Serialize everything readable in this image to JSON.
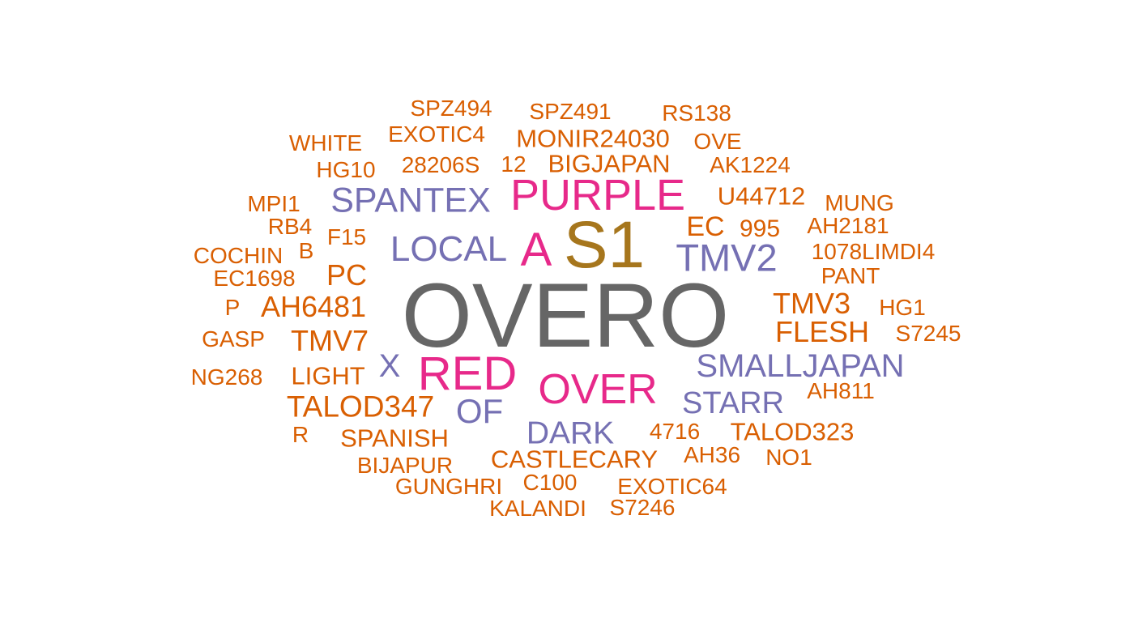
{
  "colors": {
    "orange": "#D95F02",
    "purple": "#7570B3",
    "pink": "#E7298A",
    "gold": "#A6761D",
    "gray": "#666666"
  },
  "words": [
    {
      "text": "OVERO",
      "color": "gray"
    },
    {
      "text": "S1",
      "color": "gold"
    },
    {
      "text": "PURPLE",
      "color": "pink"
    },
    {
      "text": "RED",
      "color": "pink"
    },
    {
      "text": "OVER",
      "color": "pink"
    },
    {
      "text": "A",
      "color": "pink"
    },
    {
      "text": "SPANTEX",
      "color": "purple"
    },
    {
      "text": "LOCAL",
      "color": "purple"
    },
    {
      "text": "TMV2",
      "color": "purple"
    },
    {
      "text": "SMALLJAPAN",
      "color": "purple"
    },
    {
      "text": "STARR",
      "color": "purple"
    },
    {
      "text": "DARK",
      "color": "purple"
    },
    {
      "text": "OF",
      "color": "purple"
    },
    {
      "text": "X",
      "color": "purple"
    },
    {
      "text": "SPZ494",
      "color": "orange"
    },
    {
      "text": "SPZ491",
      "color": "orange"
    },
    {
      "text": "RS138",
      "color": "orange"
    },
    {
      "text": "EXOTIC4",
      "color": "orange"
    },
    {
      "text": "MONIR24030",
      "color": "orange"
    },
    {
      "text": "OVE",
      "color": "orange"
    },
    {
      "text": "WHITE",
      "color": "orange"
    },
    {
      "text": "HG10",
      "color": "orange"
    },
    {
      "text": "28206S",
      "color": "orange"
    },
    {
      "text": "12",
      "color": "orange"
    },
    {
      "text": "BIGJAPAN",
      "color": "orange"
    },
    {
      "text": "AK1224",
      "color": "orange"
    },
    {
      "text": "U44712",
      "color": "orange"
    },
    {
      "text": "MPI1",
      "color": "orange"
    },
    {
      "text": "MUNG",
      "color": "orange"
    },
    {
      "text": "RB4",
      "color": "orange"
    },
    {
      "text": "EC",
      "color": "orange"
    },
    {
      "text": "995",
      "color": "orange"
    },
    {
      "text": "AH2181",
      "color": "orange"
    },
    {
      "text": "F15",
      "color": "orange"
    },
    {
      "text": "B",
      "color": "orange"
    },
    {
      "text": "COCHIN",
      "color": "orange"
    },
    {
      "text": "1078LIMDI4",
      "color": "orange"
    },
    {
      "text": "PC",
      "color": "orange"
    },
    {
      "text": "EC1698",
      "color": "orange"
    },
    {
      "text": "PANT",
      "color": "orange"
    },
    {
      "text": "P",
      "color": "orange"
    },
    {
      "text": "AH6481",
      "color": "orange"
    },
    {
      "text": "TMV3",
      "color": "orange"
    },
    {
      "text": "HG1",
      "color": "orange"
    },
    {
      "text": "FLESH",
      "color": "orange"
    },
    {
      "text": "S7245",
      "color": "orange"
    },
    {
      "text": "GASP",
      "color": "orange"
    },
    {
      "text": "TMV7",
      "color": "orange"
    },
    {
      "text": "NG268",
      "color": "orange"
    },
    {
      "text": "LIGHT",
      "color": "orange"
    },
    {
      "text": "AH811",
      "color": "orange"
    },
    {
      "text": "TALOD347",
      "color": "orange"
    },
    {
      "text": "4716",
      "color": "orange"
    },
    {
      "text": "TALOD323",
      "color": "orange"
    },
    {
      "text": "R",
      "color": "orange"
    },
    {
      "text": "SPANISH",
      "color": "orange"
    },
    {
      "text": "CASTLECARY",
      "color": "orange"
    },
    {
      "text": "AH36",
      "color": "orange"
    },
    {
      "text": "NO1",
      "color": "orange"
    },
    {
      "text": "BIJAPUR",
      "color": "orange"
    },
    {
      "text": "GUNGHRI",
      "color": "orange"
    },
    {
      "text": "C100",
      "color": "orange"
    },
    {
      "text": "EXOTIC64",
      "color": "orange"
    },
    {
      "text": "KALANDI",
      "color": "orange"
    },
    {
      "text": "S7246",
      "color": "orange"
    }
  ]
}
